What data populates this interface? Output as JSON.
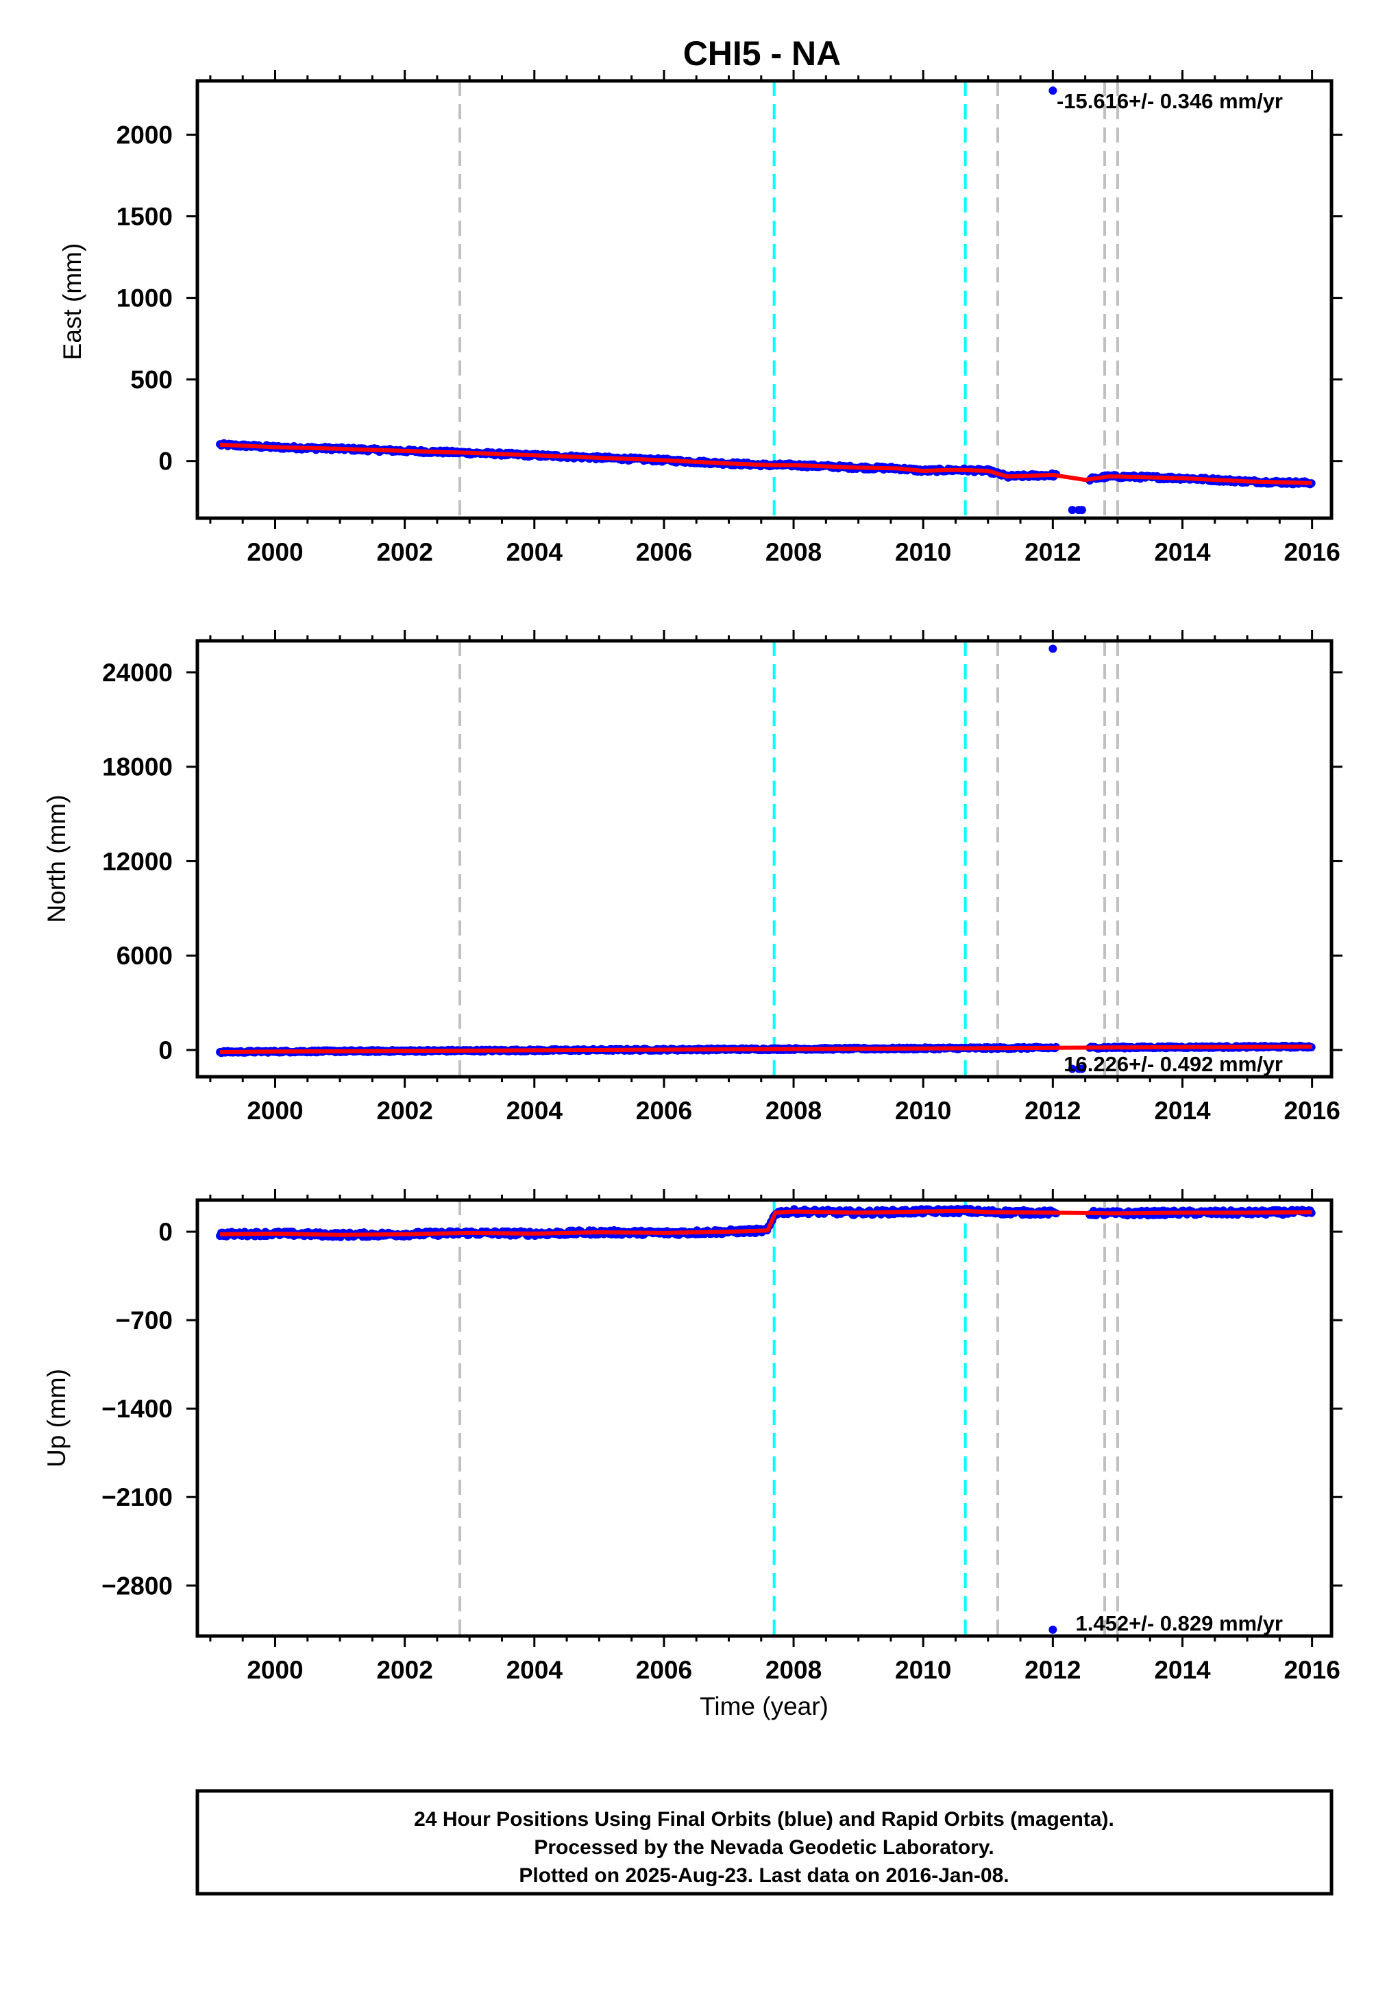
{
  "figure": {
    "title": "CHI5 - NA",
    "footer": [
      "24 Hour Positions Using Final Orbits (blue) and Rapid Orbits (magenta).",
      "Processed by the Nevada Geodetic Laboratory.",
      "Plotted on 2025-Aug-23. Last data on 2016-Jan-08."
    ],
    "colors": {
      "final_orbits": "#0000ff",
      "model_fit": "#ff0000",
      "equipment_change": "#c0c0c0",
      "earthquake": "#00ffff"
    }
  },
  "chart_data": [
    {
      "type": "scatter",
      "panel": "east",
      "ylabel": "East (mm)",
      "xlabel": "",
      "xlim": [
        1998.8,
        2016.3
      ],
      "ylim": [
        -350,
        2330
      ],
      "xticks": [
        2000,
        2002,
        2004,
        2006,
        2008,
        2010,
        2012,
        2014,
        2016
      ],
      "yticks": [
        0,
        500,
        1000,
        1500,
        2000
      ],
      "rate_label": "-15.616+/- 0.346 mm/yr",
      "vlines_gray": [
        2002.85,
        2011.15,
        2012.8,
        2013.0
      ],
      "vlines_cyan": [
        2007.7,
        2010.65
      ],
      "trend": {
        "x": [
          1999.15,
          2000,
          2001,
          2002,
          2003,
          2004,
          2005,
          2006,
          2007,
          2007.65,
          2008,
          2009,
          2009.6,
          2010,
          2010.4,
          2010.6,
          2011,
          2011.3,
          2012,
          2012.5,
          2012.85,
          2013,
          2014,
          2015,
          2016.0
        ],
        "y": [
          100,
          85,
          75,
          62,
          50,
          35,
          20,
          5,
          -15,
          -25,
          -25,
          -40,
          -45,
          -60,
          -55,
          -55,
          -60,
          -95,
          -85,
          -115,
          -95,
          -95,
          -105,
          -125,
          -135
        ]
      },
      "outliers": [
        {
          "x": 2012.0,
          "y": 2270
        },
        {
          "x": 2012.3,
          "y": -300
        },
        {
          "x": 2012.4,
          "y": -300
        },
        {
          "x": 2012.45,
          "y": -300
        }
      ]
    },
    {
      "type": "scatter",
      "panel": "north",
      "ylabel": "North (mm)",
      "xlabel": "",
      "xlim": [
        1998.8,
        2016.3
      ],
      "ylim": [
        -1700,
        26000
      ],
      "xticks": [
        2000,
        2002,
        2004,
        2006,
        2008,
        2010,
        2012,
        2014,
        2016
      ],
      "yticks": [
        0,
        6000,
        12000,
        18000,
        24000
      ],
      "rate_label": "16.226+/- 0.492 mm/yr",
      "vlines_gray": [
        2002.85,
        2011.15,
        2012.8,
        2013.0
      ],
      "vlines_cyan": [
        2007.7,
        2010.65
      ],
      "trend": {
        "x": [
          1999.15,
          2000,
          2002,
          2004,
          2006,
          2008,
          2010,
          2012,
          2013,
          2014,
          2016.0
        ],
        "y": [
          -130,
          -100,
          -60,
          -20,
          20,
          60,
          100,
          140,
          160,
          180,
          210
        ]
      },
      "outliers": [
        {
          "x": 2012.0,
          "y": 25500
        },
        {
          "x": 2012.3,
          "y": -1200
        },
        {
          "x": 2012.4,
          "y": -1200
        },
        {
          "x": 2012.45,
          "y": -1200
        }
      ]
    },
    {
      "type": "scatter",
      "panel": "up",
      "ylabel": "Up (mm)",
      "xlabel": "Time (year)",
      "xlim": [
        1998.8,
        2016.3
      ],
      "ylim": [
        -3200,
        250
      ],
      "xticks": [
        2000,
        2002,
        2004,
        2006,
        2008,
        2010,
        2012,
        2014,
        2016
      ],
      "yticks": [
        0,
        -700,
        -1400,
        -2100,
        -2800
      ],
      "rate_label": "1.452+/- 0.829 mm/yr",
      "vlines_gray": [
        2002.85,
        2011.15,
        2012.8,
        2013.0
      ],
      "vlines_cyan": [
        2007.7,
        2010.65
      ],
      "trend": {
        "x": [
          1999.15,
          2000,
          2001,
          2002,
          2003,
          2004,
          2005,
          2006,
          2007,
          2007.6,
          2007.72,
          2008,
          2009,
          2010,
          2010.65,
          2011,
          2012,
          2013,
          2014,
          2015,
          2016.0
        ],
        "y": [
          -20,
          -15,
          -25,
          -20,
          -10,
          -15,
          -5,
          -10,
          0,
          10,
          150,
          160,
          150,
          160,
          165,
          155,
          150,
          145,
          150,
          150,
          155
        ]
      },
      "outliers": [
        {
          "x": 2012.0,
          "y": -3150
        }
      ]
    }
  ]
}
